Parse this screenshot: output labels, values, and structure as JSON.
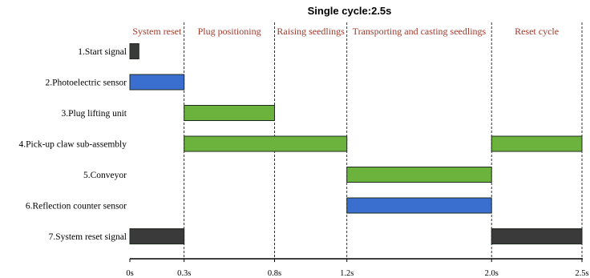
{
  "chart_data": {
    "type": "gantt",
    "title": "Single cycle:2.5s",
    "xlim": [
      0,
      2.5
    ],
    "ticks": [
      {
        "value": 0,
        "label": "0s"
      },
      {
        "value": 0.3,
        "label": "0.3s"
      },
      {
        "value": 0.8,
        "label": "0.8s"
      },
      {
        "value": 1.2,
        "label": "1.2s"
      },
      {
        "value": 2.0,
        "label": "2.0s"
      },
      {
        "value": 2.5,
        "label": "2.5s"
      }
    ],
    "dividers": [
      0.3,
      0.8,
      1.2,
      2.0,
      2.5
    ],
    "phases": [
      {
        "label": "System reset",
        "start": 0,
        "end": 0.3
      },
      {
        "label": "Plug positioning",
        "start": 0.3,
        "end": 0.8
      },
      {
        "label": "Raising seedlings",
        "start": 0.8,
        "end": 1.2
      },
      {
        "label": "Transporting and casting seedlings",
        "start": 1.2,
        "end": 2.0
      },
      {
        "label": "Reset cycle",
        "start": 2.0,
        "end": 2.5
      }
    ],
    "rows": [
      {
        "label": "1.Start signal",
        "bars": [
          {
            "start": 0,
            "end": 0.05,
            "color": "#3a3a3a"
          }
        ]
      },
      {
        "label": "2.Photoelectric sensor",
        "bars": [
          {
            "start": 0,
            "end": 0.3,
            "color": "#3a6fd0"
          }
        ]
      },
      {
        "label": "3.Plug lifting unit",
        "bars": [
          {
            "start": 0.3,
            "end": 0.8,
            "color": "#6cb33e"
          }
        ]
      },
      {
        "label": "4.Pick-up claw sub-assembly",
        "bars": [
          {
            "start": 0.3,
            "end": 1.2,
            "color": "#6cb33e"
          },
          {
            "start": 2.0,
            "end": 2.5,
            "color": "#6cb33e"
          }
        ]
      },
      {
        "label": "5.Conveyor",
        "bars": [
          {
            "start": 1.2,
            "end": 2.0,
            "color": "#6cb33e"
          }
        ]
      },
      {
        "label": "6.Reflection counter sensor",
        "bars": [
          {
            "start": 1.2,
            "end": 2.0,
            "color": "#3a6fd0"
          }
        ]
      },
      {
        "label": "7.System reset signal",
        "bars": [
          {
            "start": 0,
            "end": 0.3,
            "color": "#3a3a3a"
          },
          {
            "start": 2.0,
            "end": 2.5,
            "color": "#3a3a3a"
          }
        ]
      }
    ],
    "colors": {
      "phase_text": "#a0392a",
      "bar_border": "#1f2a1f",
      "axis": "#000000"
    }
  }
}
